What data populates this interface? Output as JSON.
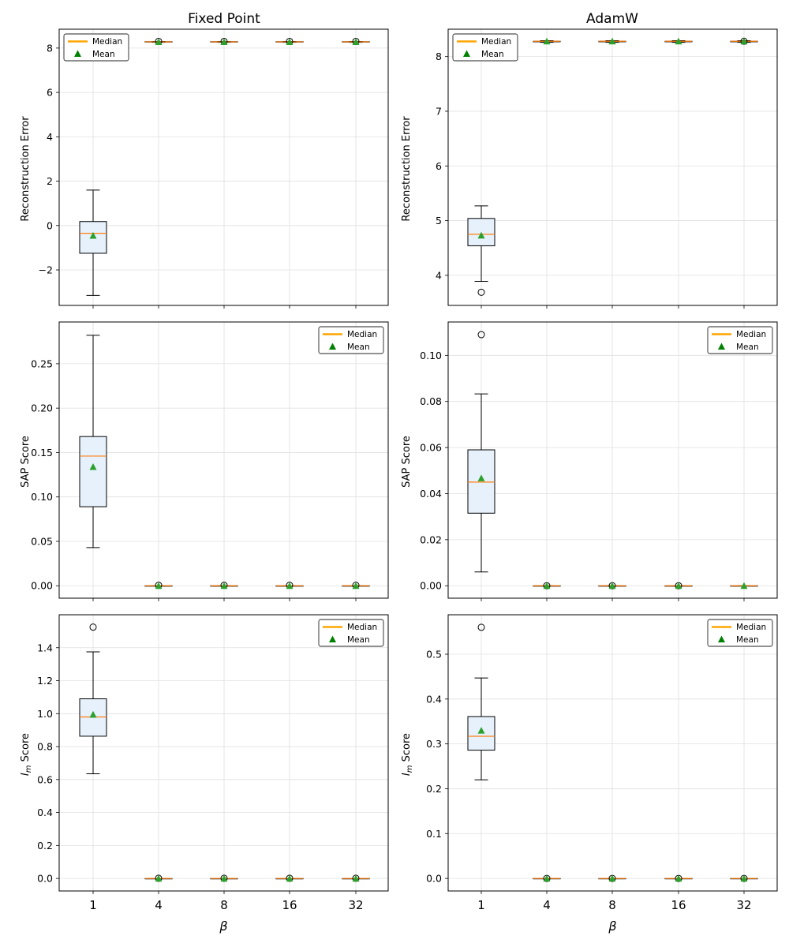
{
  "figure": {
    "column_titles": [
      "Fixed Point",
      "AdamW"
    ],
    "xlabel": "β",
    "legend_labels": {
      "median": "Median",
      "mean": "Mean"
    },
    "colors": {
      "box_fill": "#e6f1fc",
      "median": "#ff7f0e",
      "legend_median": "#ffa500",
      "mean": "#2ca02c",
      "legend_mean": "#008000",
      "grid": "#e0e0e0"
    }
  },
  "chart_data": [
    {
      "type": "box",
      "panel": "fixed-point-reconstruction",
      "title": "Fixed Point",
      "ylabel": "Reconstruction Error",
      "xlabel": "",
      "legend": "upper-left",
      "categories": [
        "1",
        "4",
        "8",
        "16",
        "32"
      ],
      "ylim": [
        -3.6,
        8.85
      ],
      "yticks": [
        -2,
        0,
        2,
        4,
        6,
        8
      ],
      "ytick_labels": [
        "−2",
        "0",
        "2",
        "4",
        "6",
        "8"
      ],
      "boxes": [
        {
          "x": "1",
          "whisker_low": -3.15,
          "q1": -1.25,
          "median": -0.35,
          "q3": 0.18,
          "whisker_high": 1.6,
          "mean": -0.45,
          "outliers": []
        },
        {
          "x": "4",
          "whisker_low": 8.26,
          "q1": 8.27,
          "median": 8.28,
          "q3": 8.29,
          "whisker_high": 8.3,
          "mean": 8.28,
          "outliers": [
            8.3
          ]
        },
        {
          "x": "8",
          "whisker_low": 8.26,
          "q1": 8.27,
          "median": 8.28,
          "q3": 8.29,
          "whisker_high": 8.3,
          "mean": 8.28,
          "outliers": [
            8.3
          ]
        },
        {
          "x": "16",
          "whisker_low": 8.26,
          "q1": 8.27,
          "median": 8.28,
          "q3": 8.29,
          "whisker_high": 8.3,
          "mean": 8.28,
          "outliers": [
            8.3
          ]
        },
        {
          "x": "32",
          "whisker_low": 8.26,
          "q1": 8.27,
          "median": 8.28,
          "q3": 8.29,
          "whisker_high": 8.3,
          "mean": 8.28,
          "outliers": [
            8.3
          ]
        }
      ]
    },
    {
      "type": "box",
      "panel": "adamw-reconstruction",
      "title": "AdamW",
      "ylabel": "Reconstruction Error",
      "xlabel": "",
      "legend": "upper-left",
      "categories": [
        "1",
        "4",
        "8",
        "16",
        "32"
      ],
      "ylim": [
        3.45,
        8.5
      ],
      "yticks": [
        4,
        5,
        6,
        7,
        8
      ],
      "ytick_labels": [
        "4",
        "5",
        "6",
        "7",
        "8"
      ],
      "boxes": [
        {
          "x": "1",
          "whisker_low": 3.89,
          "q1": 4.54,
          "median": 4.75,
          "q3": 5.04,
          "whisker_high": 5.27,
          "mean": 4.73,
          "outliers": [
            3.69
          ]
        },
        {
          "x": "4",
          "whisker_low": 8.26,
          "q1": 8.27,
          "median": 8.28,
          "q3": 8.28,
          "whisker_high": 8.29,
          "mean": 8.28,
          "outliers": []
        },
        {
          "x": "8",
          "whisker_low": 8.26,
          "q1": 8.27,
          "median": 8.28,
          "q3": 8.28,
          "whisker_high": 8.29,
          "mean": 8.28,
          "outliers": []
        },
        {
          "x": "16",
          "whisker_low": 8.26,
          "q1": 8.27,
          "median": 8.28,
          "q3": 8.28,
          "whisker_high": 8.29,
          "mean": 8.28,
          "outliers": []
        },
        {
          "x": "32",
          "whisker_low": 8.26,
          "q1": 8.27,
          "median": 8.28,
          "q3": 8.28,
          "whisker_high": 8.29,
          "mean": 8.28,
          "outliers": [
            8.28
          ]
        }
      ]
    },
    {
      "type": "box",
      "panel": "fixed-point-sap",
      "title": "",
      "ylabel": "SAP Score",
      "xlabel": "",
      "legend": "upper-right",
      "categories": [
        "1",
        "4",
        "8",
        "16",
        "32"
      ],
      "ylim": [
        -0.014,
        0.297
      ],
      "yticks": [
        0,
        0.05,
        0.1,
        0.15,
        0.2,
        0.25
      ],
      "ytick_labels": [
        "0.00",
        "0.05",
        "0.10",
        "0.15",
        "0.20",
        "0.25"
      ],
      "boxes": [
        {
          "x": "1",
          "whisker_low": 0.043,
          "q1": 0.089,
          "median": 0.146,
          "q3": 0.168,
          "whisker_high": 0.282,
          "mean": 0.134,
          "outliers": []
        },
        {
          "x": "4",
          "whisker_low": 0,
          "q1": 0,
          "median": 0,
          "q3": 0,
          "whisker_high": 0,
          "mean": 0,
          "outliers": [
            0.0005
          ]
        },
        {
          "x": "8",
          "whisker_low": 0,
          "q1": 0,
          "median": 0,
          "q3": 0,
          "whisker_high": 0,
          "mean": 0,
          "outliers": [
            0.0005
          ]
        },
        {
          "x": "16",
          "whisker_low": 0,
          "q1": 0,
          "median": 0,
          "q3": 0,
          "whisker_high": 0,
          "mean": 0,
          "outliers": [
            0.0005
          ]
        },
        {
          "x": "32",
          "whisker_low": 0,
          "q1": 0,
          "median": 0,
          "q3": 0,
          "whisker_high": 0,
          "mean": 0,
          "outliers": [
            0.0005
          ]
        }
      ]
    },
    {
      "type": "box",
      "panel": "adamw-sap",
      "title": "",
      "ylabel": "SAP Score",
      "xlabel": "",
      "legend": "upper-right",
      "categories": [
        "1",
        "4",
        "8",
        "16",
        "32"
      ],
      "ylim": [
        -0.0054,
        0.1145
      ],
      "yticks": [
        0,
        0.02,
        0.04,
        0.06,
        0.08,
        0.1
      ],
      "ytick_labels": [
        "0.00",
        "0.02",
        "0.04",
        "0.06",
        "0.08",
        "0.10"
      ],
      "boxes": [
        {
          "x": "1",
          "whisker_low": 0.006,
          "q1": 0.0315,
          "median": 0.045,
          "q3": 0.059,
          "whisker_high": 0.0833,
          "mean": 0.0467,
          "outliers": [
            0.109
          ]
        },
        {
          "x": "4",
          "whisker_low": 0,
          "q1": 0,
          "median": 0,
          "q3": 0,
          "whisker_high": 0,
          "mean": 0,
          "outliers": [
            0
          ]
        },
        {
          "x": "8",
          "whisker_low": 0,
          "q1": 0,
          "median": 0,
          "q3": 0,
          "whisker_high": 0,
          "mean": 0,
          "outliers": [
            0
          ]
        },
        {
          "x": "16",
          "whisker_low": 0,
          "q1": 0,
          "median": 0,
          "q3": 0,
          "whisker_high": 0,
          "mean": 0,
          "outliers": [
            0
          ]
        },
        {
          "x": "32",
          "whisker_low": 0,
          "q1": 0,
          "median": 0,
          "q3": 0,
          "whisker_high": 0,
          "mean": 0,
          "outliers": []
        }
      ]
    },
    {
      "type": "box",
      "panel": "fixed-point-im",
      "title": "",
      "ylabel": "I_m Score",
      "xlabel": "β",
      "legend": "upper-right",
      "categories": [
        "1",
        "4",
        "8",
        "16",
        "32"
      ],
      "ylim": [
        -0.076,
        1.6
      ],
      "yticks": [
        0,
        0.2,
        0.4,
        0.6,
        0.8,
        1.0,
        1.2,
        1.4
      ],
      "ytick_labels": [
        "0.0",
        "0.2",
        "0.4",
        "0.6",
        "0.8",
        "1.0",
        "1.2",
        "1.4"
      ],
      "boxes": [
        {
          "x": "1",
          "whisker_low": 0.635,
          "q1": 0.863,
          "median": 0.98,
          "q3": 1.09,
          "whisker_high": 1.375,
          "mean": 0.995,
          "outliers": [
            1.525
          ]
        },
        {
          "x": "4",
          "whisker_low": 0,
          "q1": 0,
          "median": 0,
          "q3": 0,
          "whisker_high": 0,
          "mean": 0,
          "outliers": [
            0.001
          ]
        },
        {
          "x": "8",
          "whisker_low": 0,
          "q1": 0,
          "median": 0,
          "q3": 0,
          "whisker_high": 0,
          "mean": 0,
          "outliers": [
            0.001
          ]
        },
        {
          "x": "16",
          "whisker_low": 0,
          "q1": 0,
          "median": 0,
          "q3": 0,
          "whisker_high": 0,
          "mean": 0,
          "outliers": [
            0.001
          ]
        },
        {
          "x": "32",
          "whisker_low": 0,
          "q1": 0,
          "median": 0,
          "q3": 0,
          "whisker_high": 0,
          "mean": 0,
          "outliers": [
            0.001
          ]
        }
      ]
    },
    {
      "type": "box",
      "panel": "adamw-im",
      "title": "",
      "ylabel": "I_m Score",
      "xlabel": "β",
      "legend": "upper-right",
      "categories": [
        "1",
        "4",
        "8",
        "16",
        "32"
      ],
      "ylim": [
        -0.028,
        0.588
      ],
      "yticks": [
        0,
        0.1,
        0.2,
        0.3,
        0.4,
        0.5
      ],
      "ytick_labels": [
        "0.0",
        "0.1",
        "0.2",
        "0.3",
        "0.4",
        "0.5"
      ],
      "boxes": [
        {
          "x": "1",
          "whisker_low": 0.22,
          "q1": 0.286,
          "median": 0.317,
          "q3": 0.361,
          "whisker_high": 0.447,
          "mean": 0.33,
          "outliers": [
            0.56
          ]
        },
        {
          "x": "4",
          "whisker_low": 0,
          "q1": 0,
          "median": 0,
          "q3": 0,
          "whisker_high": 0,
          "mean": 0,
          "outliers": [
            0
          ]
        },
        {
          "x": "8",
          "whisker_low": 0,
          "q1": 0,
          "median": 0,
          "q3": 0,
          "whisker_high": 0,
          "mean": 0,
          "outliers": [
            0
          ]
        },
        {
          "x": "16",
          "whisker_low": 0,
          "q1": 0,
          "median": 0,
          "q3": 0,
          "whisker_high": 0,
          "mean": 0,
          "outliers": [
            0
          ]
        },
        {
          "x": "32",
          "whisker_low": 0,
          "q1": 0,
          "median": 0,
          "q3": 0,
          "whisker_high": 0,
          "mean": 0,
          "outliers": [
            0
          ]
        }
      ]
    }
  ]
}
